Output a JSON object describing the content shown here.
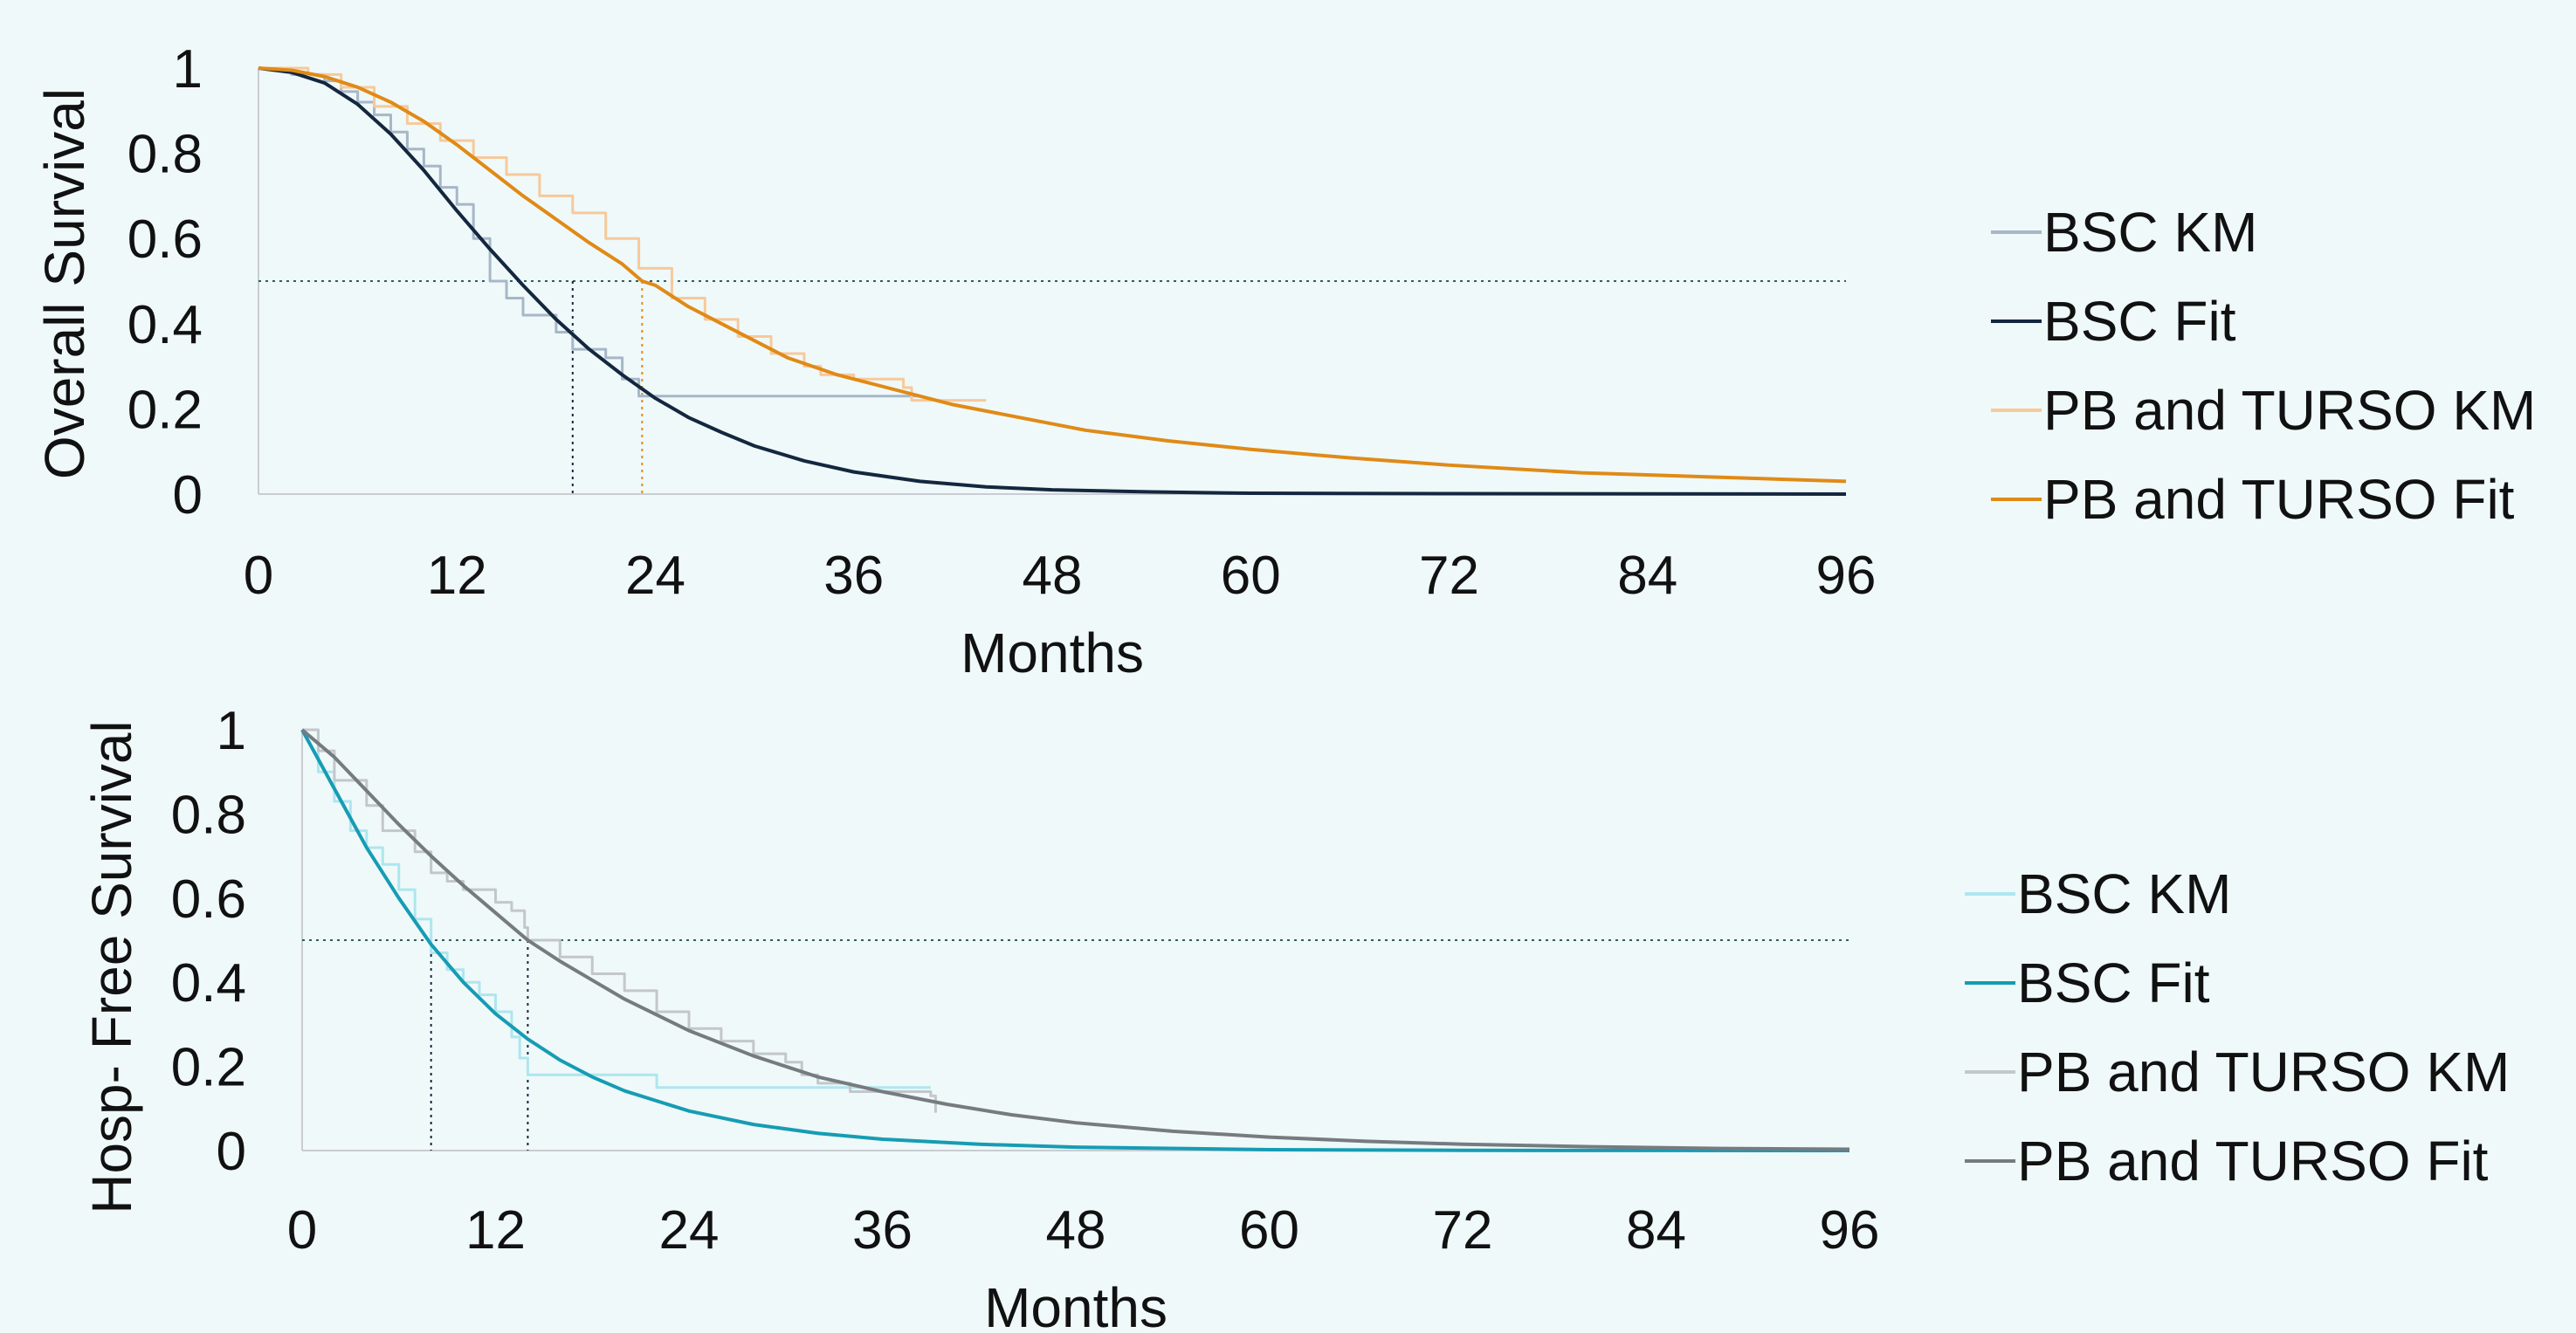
{
  "chart_data": [
    {
      "type": "line",
      "ylabel": "Overall Survival",
      "xlabel": "Months",
      "xlim": [
        0,
        96
      ],
      "ylim": [
        0,
        1
      ],
      "x_ticks": [
        0,
        12,
        24,
        36,
        48,
        60,
        72,
        84,
        96
      ],
      "y_ticks": [
        0,
        0.2,
        0.4,
        0.6,
        0.8,
        1
      ],
      "y_tick_labels": [
        "0",
        "0.2",
        "0.4",
        "0.6",
        "0.8",
        "1"
      ],
      "median_line_y": 0.5,
      "legend_position": "right",
      "series": [
        {
          "name": "BSC KM",
          "kind": "step",
          "color": "#a7b7c9",
          "points": [
            [
              0,
              1
            ],
            [
              2,
              0.985
            ],
            [
              4,
              0.97
            ],
            [
              5,
              0.945
            ],
            [
              6,
              0.92
            ],
            [
              7,
              0.89
            ],
            [
              8,
              0.85
            ],
            [
              9,
              0.81
            ],
            [
              10,
              0.77
            ],
            [
              11,
              0.72
            ],
            [
              12,
              0.68
            ],
            [
              13,
              0.6
            ],
            [
              14,
              0.5
            ],
            [
              15,
              0.46
            ],
            [
              16,
              0.42
            ],
            [
              18,
              0.38
            ],
            [
              19,
              0.34
            ],
            [
              21,
              0.32
            ],
            [
              22,
              0.27
            ],
            [
              23,
              0.23
            ],
            [
              40,
              0.23
            ]
          ]
        },
        {
          "name": "BSC Fit",
          "kind": "curve",
          "color": "#14273f",
          "points": [
            [
              0,
              1
            ],
            [
              2,
              0.99
            ],
            [
              4,
              0.965
            ],
            [
              6,
              0.915
            ],
            [
              8,
              0.845
            ],
            [
              10,
              0.76
            ],
            [
              12,
              0.665
            ],
            [
              14,
              0.575
            ],
            [
              16,
              0.49
            ],
            [
              18,
              0.41
            ],
            [
              19,
              0.375
            ],
            [
              20,
              0.34
            ],
            [
              22,
              0.28
            ],
            [
              24,
              0.225
            ],
            [
              26,
              0.18
            ],
            [
              28,
              0.145
            ],
            [
              30,
              0.113
            ],
            [
              33,
              0.078
            ],
            [
              36,
              0.052
            ],
            [
              40,
              0.03
            ],
            [
              44,
              0.017
            ],
            [
              48,
              0.01
            ],
            [
              54,
              0.005
            ],
            [
              60,
              0.002
            ],
            [
              72,
              0.001
            ],
            [
              96,
              0
            ]
          ]
        },
        {
          "name": "PB and TURSO KM",
          "kind": "step",
          "color": "#f7c99b",
          "points": [
            [
              0,
              1
            ],
            [
              3,
              0.985
            ],
            [
              5,
              0.955
            ],
            [
              7,
              0.91
            ],
            [
              9,
              0.87
            ],
            [
              11,
              0.83
            ],
            [
              13,
              0.79
            ],
            [
              15,
              0.75
            ],
            [
              17,
              0.7
            ],
            [
              19,
              0.66
            ],
            [
              21,
              0.6
            ],
            [
              23,
              0.53
            ],
            [
              25,
              0.46
            ],
            [
              27,
              0.41
            ],
            [
              29,
              0.37
            ],
            [
              31,
              0.33
            ],
            [
              33,
              0.3
            ],
            [
              34,
              0.28
            ],
            [
              36,
              0.27
            ],
            [
              39,
              0.25
            ],
            [
              39.5,
              0.22
            ],
            [
              44,
              0.22
            ]
          ]
        },
        {
          "name": "PB and TURSO Fit",
          "kind": "curve",
          "color": "#e08a17",
          "points": [
            [
              0,
              1
            ],
            [
              2,
              0.995
            ],
            [
              4,
              0.98
            ],
            [
              6,
              0.955
            ],
            [
              8,
              0.92
            ],
            [
              10,
              0.875
            ],
            [
              12,
              0.82
            ],
            [
              14,
              0.76
            ],
            [
              16,
              0.7
            ],
            [
              18,
              0.645
            ],
            [
              20,
              0.59
            ],
            [
              22,
              0.54
            ],
            [
              23.2,
              0.5
            ],
            [
              24,
              0.49
            ],
            [
              26,
              0.44
            ],
            [
              28,
              0.4
            ],
            [
              30,
              0.36
            ],
            [
              32,
              0.32
            ],
            [
              35,
              0.28
            ],
            [
              38,
              0.25
            ],
            [
              42,
              0.21
            ],
            [
              46,
              0.18
            ],
            [
              50,
              0.15
            ],
            [
              55,
              0.125
            ],
            [
              60,
              0.105
            ],
            [
              66,
              0.085
            ],
            [
              72,
              0.068
            ],
            [
              80,
              0.05
            ],
            [
              88,
              0.04
            ],
            [
              96,
              0.03
            ]
          ]
        }
      ],
      "median_markers": [
        {
          "x": 19,
          "color": "#14273f"
        },
        {
          "x": 23.2,
          "color": "#e08a17"
        }
      ]
    },
    {
      "type": "line",
      "ylabel": "Hosp- Free Survival",
      "xlabel": "Months",
      "xlim": [
        0,
        96
      ],
      "ylim": [
        0,
        1
      ],
      "x_ticks": [
        0,
        12,
        24,
        36,
        48,
        60,
        72,
        84,
        96
      ],
      "y_ticks": [
        0,
        0.2,
        0.4,
        0.6,
        0.8,
        1
      ],
      "y_tick_labels": [
        "0",
        "0.2",
        "0.4",
        "0.6",
        "0.8",
        "1"
      ],
      "median_line_y": 0.5,
      "legend_position": "right",
      "series": [
        {
          "name": "BSC KM",
          "kind": "step",
          "color": "#aee6ef",
          "points": [
            [
              0,
              1
            ],
            [
              1,
              0.9
            ],
            [
              2,
              0.83
            ],
            [
              3,
              0.76
            ],
            [
              4,
              0.72
            ],
            [
              5,
              0.68
            ],
            [
              6,
              0.62
            ],
            [
              7,
              0.55
            ],
            [
              8,
              0.47
            ],
            [
              9,
              0.43
            ],
            [
              10,
              0.4
            ],
            [
              11,
              0.37
            ],
            [
              12,
              0.33
            ],
            [
              13,
              0.27
            ],
            [
              13.5,
              0.22
            ],
            [
              14,
              0.18
            ],
            [
              22,
              0.15
            ],
            [
              38,
              0.15
            ],
            [
              39,
              0.15
            ]
          ]
        },
        {
          "name": "BSC Fit",
          "kind": "curve",
          "color": "#169cb4",
          "points": [
            [
              0,
              1
            ],
            [
              2,
              0.86
            ],
            [
              4,
              0.72
            ],
            [
              6,
              0.6
            ],
            [
              8,
              0.49
            ],
            [
              10,
              0.4
            ],
            [
              12,
              0.325
            ],
            [
              14,
              0.265
            ],
            [
              16,
              0.215
            ],
            [
              18,
              0.175
            ],
            [
              20,
              0.142
            ],
            [
              24,
              0.094
            ],
            [
              28,
              0.062
            ],
            [
              32,
              0.041
            ],
            [
              36,
              0.027
            ],
            [
              42,
              0.015
            ],
            [
              48,
              0.008
            ],
            [
              60,
              0.002
            ],
            [
              72,
              0.0005
            ],
            [
              96,
              0
            ]
          ]
        },
        {
          "name": "PB and TURSO KM",
          "kind": "step",
          "color": "#c3c7cb",
          "points": [
            [
              0,
              1
            ],
            [
              1,
              0.95
            ],
            [
              2,
              0.88
            ],
            [
              4,
              0.82
            ],
            [
              5,
              0.76
            ],
            [
              7,
              0.71
            ],
            [
              8,
              0.66
            ],
            [
              9,
              0.64
            ],
            [
              10,
              0.62
            ],
            [
              12,
              0.59
            ],
            [
              13,
              0.57
            ],
            [
              13.8,
              0.53
            ],
            [
              14,
              0.5
            ],
            [
              16,
              0.46
            ],
            [
              18,
              0.42
            ],
            [
              20,
              0.38
            ],
            [
              22,
              0.33
            ],
            [
              24,
              0.29
            ],
            [
              26,
              0.26
            ],
            [
              28,
              0.23
            ],
            [
              30,
              0.21
            ],
            [
              31,
              0.18
            ],
            [
              32,
              0.16
            ],
            [
              34,
              0.14
            ],
            [
              39,
              0.13
            ],
            [
              39.3,
              0.09
            ]
          ]
        },
        {
          "name": "PB and TURSO Fit",
          "kind": "curve",
          "color": "#767b80",
          "points": [
            [
              0,
              1
            ],
            [
              2,
              0.935
            ],
            [
              4,
              0.855
            ],
            [
              6,
              0.775
            ],
            [
              8,
              0.7
            ],
            [
              10,
              0.63
            ],
            [
              12,
              0.565
            ],
            [
              14,
              0.5
            ],
            [
              16,
              0.45
            ],
            [
              18,
              0.405
            ],
            [
              20,
              0.36
            ],
            [
              24,
              0.285
            ],
            [
              28,
              0.225
            ],
            [
              32,
              0.175
            ],
            [
              36,
              0.14
            ],
            [
              40,
              0.11
            ],
            [
              44,
              0.085
            ],
            [
              48,
              0.066
            ],
            [
              54,
              0.046
            ],
            [
              60,
              0.032
            ],
            [
              66,
              0.022
            ],
            [
              72,
              0.015
            ],
            [
              80,
              0.009
            ],
            [
              88,
              0.005
            ],
            [
              96,
              0.003
            ]
          ]
        }
      ],
      "median_markers": [
        {
          "x": 8,
          "color": "#14273f"
        },
        {
          "x": 14,
          "color": "#14273f"
        }
      ]
    }
  ]
}
